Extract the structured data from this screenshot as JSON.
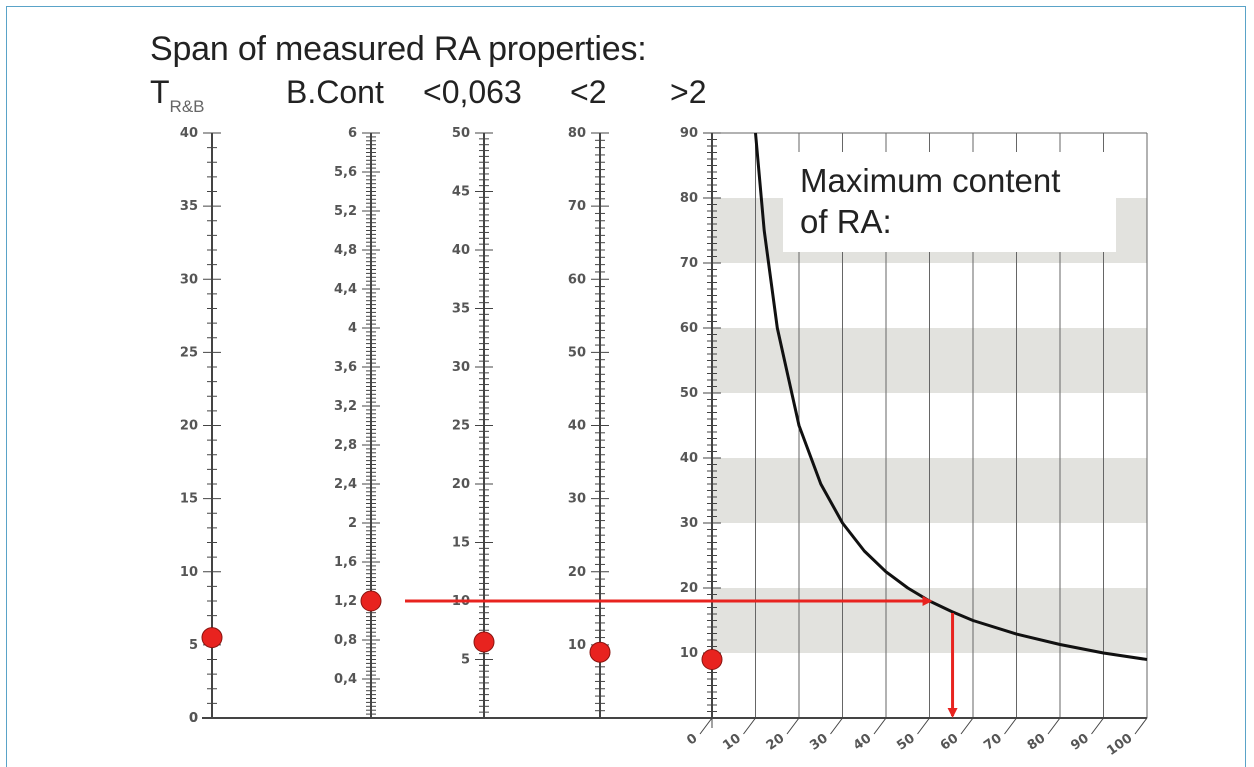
{
  "title": "Span of measured RA properties:",
  "columns": {
    "t_label": "T",
    "t_sub": "R&B",
    "bcont": "B.Cont",
    "fine": "<0,063",
    "lt2": "<2",
    "gt2": ">2"
  },
  "box": {
    "line1": "Maximum content",
    "line2": "of RA:"
  },
  "chart_data": {
    "type": "nomogram",
    "title": "Span of measured RA properties:",
    "axes": [
      {
        "name": "T R&B",
        "min": 0,
        "max": 40,
        "ticks": [
          "0",
          "5",
          "10",
          "15",
          "20",
          "25",
          "30",
          "35",
          "40"
        ],
        "marker": 5.5
      },
      {
        "name": "B.Cont",
        "min": 0,
        "max": 6,
        "ticks": [
          "0,4",
          "0,8",
          "1,2",
          "1,6",
          "2",
          "2,4",
          "2,8",
          "3,2",
          "3,6",
          "4",
          "4,4",
          "4,8",
          "5,2",
          "5,6",
          "6"
        ],
        "marker": 1.2
      },
      {
        "name": "<0,063",
        "min": 0,
        "max": 50,
        "ticks": [
          "5",
          "10",
          "15",
          "20",
          "25",
          "30",
          "35",
          "40",
          "45",
          "50"
        ],
        "marker": 6.5
      },
      {
        "name": "<2",
        "min": 0,
        "max": 80,
        "ticks": [
          "10",
          "20",
          "30",
          "40",
          "50",
          "60",
          "70",
          "80"
        ],
        "marker": 9
      },
      {
        "name": ">2",
        "min": 0,
        "max": 90,
        "ticks": [
          "10",
          "20",
          "30",
          "40",
          "50",
          "60",
          "70",
          "80",
          "90"
        ],
        "marker": 9
      }
    ],
    "curve": {
      "x": [
        10,
        12,
        15,
        20,
        25,
        30,
        35,
        40,
        45,
        50,
        55,
        60,
        70,
        80,
        90,
        100
      ],
      "y": [
        90,
        75,
        60,
        45,
        36,
        30,
        25.7,
        22.5,
        20,
        18,
        16.4,
        15,
        12.9,
        11.3,
        10,
        9
      ]
    },
    "x_ticks": [
      "0",
      "10",
      "20",
      "30",
      "40",
      "50",
      "60",
      "70",
      "80",
      "90",
      "100"
    ],
    "xlim": [
      0,
      100
    ],
    "ylim": [
      0,
      90
    ],
    "arrow": {
      "from_axis": "B.Cont",
      "y": 18,
      "x": 53
    },
    "colors": {
      "marker": "#e8231f",
      "curve": "#111111",
      "band": "#e2e2de",
      "axis": "#444444"
    }
  }
}
